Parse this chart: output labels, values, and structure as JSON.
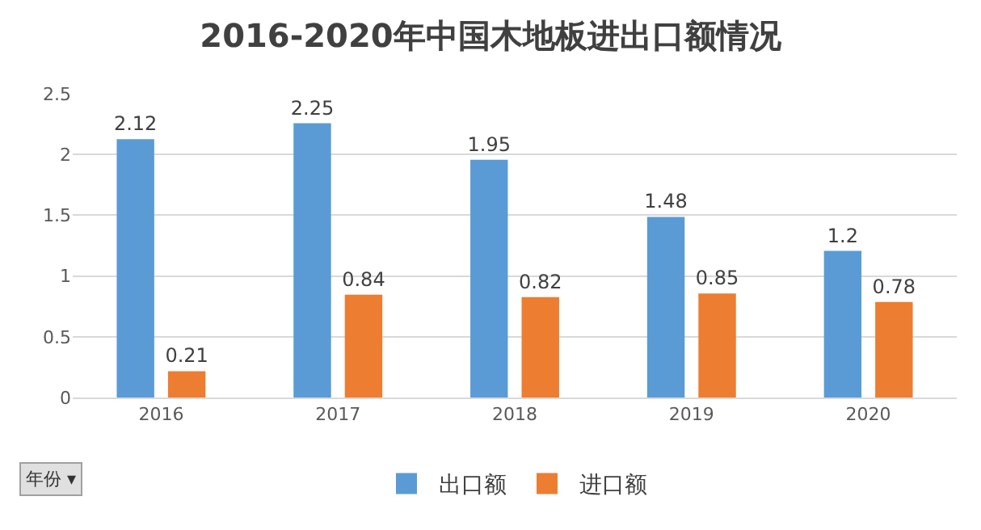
{
  "chart_data": {
    "type": "bar",
    "title": "2016-2020年中国木地板进出口额情况",
    "categories": [
      "2016",
      "2017",
      "2018",
      "2019",
      "2020"
    ],
    "series": [
      {
        "name": "出口额",
        "color": "#5b9bd5",
        "values": [
          2.12,
          2.25,
          1.95,
          1.48,
          1.2
        ]
      },
      {
        "name": "进口额",
        "color": "#ed7d31",
        "values": [
          0.21,
          0.84,
          0.82,
          0.85,
          0.78
        ]
      }
    ],
    "ylim": [
      0,
      2.5
    ],
    "yticks": [
      0,
      0.5,
      1,
      1.5,
      2,
      2.5
    ],
    "grid": "y",
    "legend": "bottom",
    "data_labels": true,
    "annotations": [
      "年份 ▾"
    ]
  }
}
